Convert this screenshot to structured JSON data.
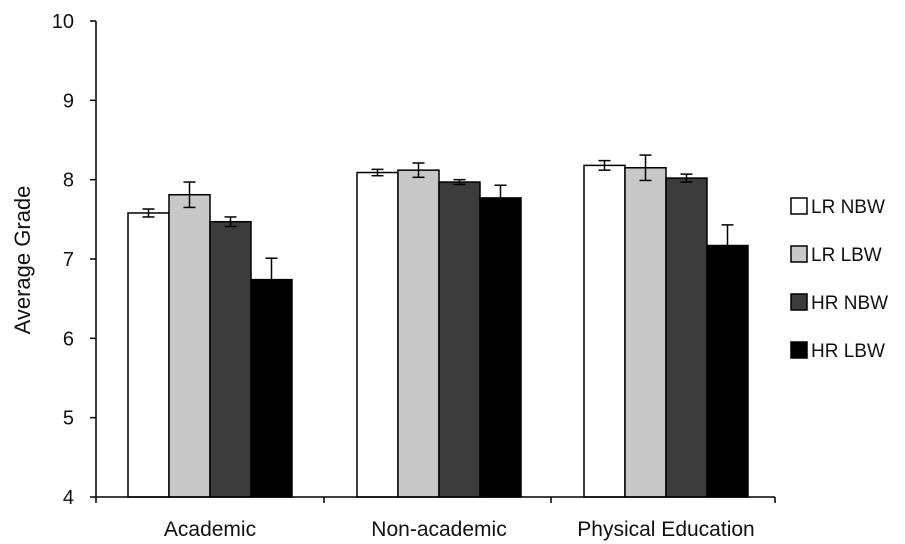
{
  "chart_data": {
    "type": "bar",
    "title": "",
    "xlabel": "",
    "ylabel": "Average Grade",
    "ylim": [
      4,
      10
    ],
    "yticks": [
      4,
      5,
      6,
      7,
      8,
      9,
      10
    ],
    "grid": false,
    "legend_position": "right",
    "categories": [
      "Academic",
      "Non-academic",
      "Physical Education"
    ],
    "series": [
      {
        "name": "LR NBW",
        "color": "#ffffff",
        "values": [
          7.58,
          8.09,
          8.18
        ],
        "errors": [
          0.05,
          0.04,
          0.06
        ]
      },
      {
        "name": "LR LBW",
        "color": "#c8c8c8",
        "values": [
          7.81,
          8.12,
          8.15
        ],
        "errors": [
          0.16,
          0.09,
          0.16
        ]
      },
      {
        "name": "HR NBW",
        "color": "#3c3c3c",
        "values": [
          7.47,
          7.97,
          8.02
        ],
        "errors": [
          0.06,
          0.03,
          0.05
        ]
      },
      {
        "name": "HR LBW",
        "color": "#000000",
        "values": [
          6.74,
          7.77,
          7.17
        ],
        "errors": [
          0.27,
          0.16,
          0.26
        ]
      }
    ]
  }
}
